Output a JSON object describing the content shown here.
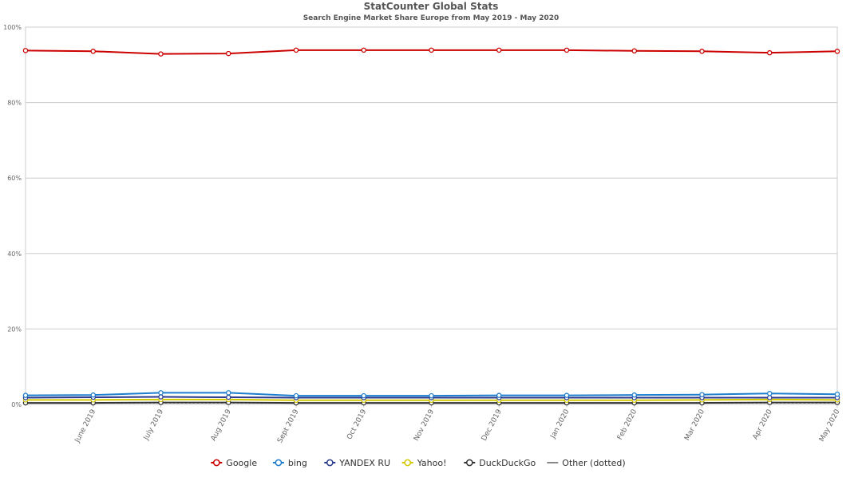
{
  "chart_data": {
    "type": "line",
    "title": "StatCounter Global Stats",
    "subtitle": "Search Engine Market Share Europe from May 2019 - May 2020",
    "categories": [
      "May 2019",
      "June 2019",
      "July 2019",
      "Aug 2019",
      "Sept 2019",
      "Oct 2019",
      "Nov 2019",
      "Dec 2019",
      "Jan 2020",
      "Feb 2020",
      "Mar 2020",
      "Apr 2020",
      "May 2020"
    ],
    "ylim": [
      0,
      100
    ],
    "yticks": [
      0,
      20,
      40,
      60,
      80,
      100
    ],
    "ytick_labels": [
      "0%",
      "20%",
      "40%",
      "60%",
      "80%",
      "100%"
    ],
    "grid": true,
    "legend_position": "bottom",
    "series": [
      {
        "name": "Google",
        "color": "#cc0000",
        "marker": "circle",
        "values": [
          93.8,
          93.6,
          92.9,
          93.0,
          93.9,
          93.9,
          93.9,
          93.9,
          93.9,
          93.7,
          93.6,
          93.2,
          93.6
        ]
      },
      {
        "name": "bing",
        "color": "#1f7ecc",
        "marker": "circle",
        "values": [
          2.4,
          2.5,
          3.1,
          3.1,
          2.3,
          2.3,
          2.3,
          2.4,
          2.4,
          2.5,
          2.6,
          2.9,
          2.7
        ]
      },
      {
        "name": "YANDEX RU",
        "color": "#2b3a8c",
        "marker": "circle",
        "values": [
          1.8,
          1.9,
          2.0,
          1.9,
          1.8,
          1.8,
          1.8,
          1.8,
          1.8,
          1.8,
          1.8,
          1.8,
          1.8
        ]
      },
      {
        "name": "Yahoo!",
        "color": "#d4c800",
        "marker": "circle",
        "values": [
          1.2,
          1.2,
          1.3,
          1.3,
          1.1,
          1.1,
          1.1,
          1.1,
          1.1,
          1.1,
          1.2,
          1.3,
          1.2
        ]
      },
      {
        "name": "DuckDuckGo",
        "color": "#333333",
        "marker": "circle",
        "values": [
          0.4,
          0.4,
          0.5,
          0.5,
          0.4,
          0.4,
          0.4,
          0.4,
          0.4,
          0.4,
          0.4,
          0.5,
          0.5
        ]
      },
      {
        "name": "Other (dotted)",
        "color": "#888888",
        "marker": "none",
        "dotted": true,
        "values": [
          0.4,
          0.4,
          0.4,
          0.4,
          0.4,
          0.4,
          0.4,
          0.4,
          0.4,
          0.4,
          0.4,
          0.4,
          0.4
        ]
      }
    ]
  }
}
